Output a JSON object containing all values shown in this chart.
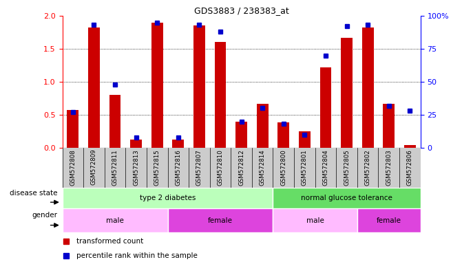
{
  "title": "GDS3883 / 238383_at",
  "samples": [
    "GSM572808",
    "GSM572809",
    "GSM572811",
    "GSM572813",
    "GSM572815",
    "GSM572816",
    "GSM572807",
    "GSM572810",
    "GSM572812",
    "GSM572814",
    "GSM572800",
    "GSM572801",
    "GSM572804",
    "GSM572805",
    "GSM572802",
    "GSM572803",
    "GSM572806"
  ],
  "red_values": [
    0.57,
    1.82,
    0.8,
    0.13,
    1.9,
    0.13,
    1.85,
    1.6,
    0.4,
    0.67,
    0.39,
    0.25,
    1.22,
    1.67,
    1.82,
    0.67,
    0.04
  ],
  "blue_values": [
    0.27,
    0.93,
    0.48,
    0.08,
    0.95,
    0.08,
    0.93,
    0.88,
    0.2,
    0.3,
    0.18,
    0.1,
    0.7,
    0.92,
    0.93,
    0.32,
    0.28
  ],
  "ylim": [
    0,
    2.0
  ],
  "y2lim": [
    0,
    100
  ],
  "yticks": [
    0,
    0.5,
    1.0,
    1.5,
    2.0
  ],
  "y2ticks": [
    0,
    25,
    50,
    75,
    100
  ],
  "y2ticklabels": [
    "0",
    "25",
    "50",
    "75",
    "100%"
  ],
  "bar_color": "#cc0000",
  "dot_color": "#0000cc",
  "disease_state_spans": [
    {
      "label": "type 2 diabetes",
      "start": 0,
      "end": 9,
      "color": "#bbffbb"
    },
    {
      "label": "normal glucose tolerance",
      "start": 10,
      "end": 16,
      "color": "#66dd66"
    }
  ],
  "gender_spans": [
    {
      "label": "male",
      "start": 0,
      "end": 4,
      "color": "#ffbbff"
    },
    {
      "label": "female",
      "start": 5,
      "end": 9,
      "color": "#dd44dd"
    },
    {
      "label": "male",
      "start": 10,
      "end": 13,
      "color": "#ffbbff"
    },
    {
      "label": "female",
      "start": 14,
      "end": 16,
      "color": "#dd44dd"
    }
  ],
  "background_color": "#ffffff",
  "tick_area_color": "#cccccc"
}
